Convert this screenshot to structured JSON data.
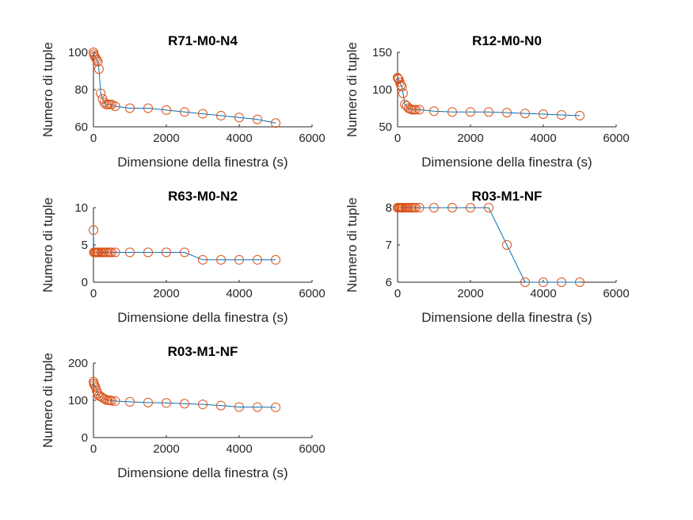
{
  "figure": {
    "colors": {
      "line": "#0072BD",
      "marker": "#D95319",
      "axis": "#262626"
    }
  },
  "chart_data": [
    {
      "type": "line",
      "title": "R71-M0-N4",
      "xlabel": "Dimensione della finestra (s)",
      "ylabel": "Numero di tuple",
      "xlim": [
        0,
        6000
      ],
      "ylim": [
        60,
        100
      ],
      "xticks": [
        0,
        2000,
        4000,
        6000
      ],
      "yticks": [
        60,
        80,
        100
      ],
      "grid": false,
      "series": [
        {
          "x": [
            1,
            10,
            30,
            60,
            90,
            120,
            150,
            200,
            250,
            300,
            350,
            400,
            450,
            500,
            600,
            1000,
            1500,
            2000,
            2500,
            3000,
            3500,
            4000,
            4500,
            5000
          ],
          "y": [
            100,
            99,
            98,
            97,
            96,
            95,
            91,
            78,
            75,
            73,
            72,
            72,
            72,
            72,
            71,
            70,
            70,
            69,
            68,
            67,
            66,
            65,
            64,
            62
          ]
        }
      ]
    },
    {
      "type": "line",
      "title": "R12-M0-N0",
      "xlabel": "Dimensione della finestra (s)",
      "ylabel": "Numero di tuple",
      "xlim": [
        0,
        6000
      ],
      "ylim": [
        50,
        150
      ],
      "xticks": [
        0,
        2000,
        4000,
        6000
      ],
      "yticks": [
        50,
        100,
        150
      ],
      "grid": false,
      "series": [
        {
          "x": [
            1,
            10,
            30,
            60,
            90,
            120,
            150,
            200,
            250,
            300,
            350,
            400,
            450,
            500,
            600,
            1000,
            1500,
            2000,
            2500,
            3000,
            3500,
            4000,
            4500,
            5000
          ],
          "y": [
            116,
            115,
            114,
            110,
            106,
            104,
            95,
            80,
            78,
            75,
            74,
            73,
            73,
            73,
            73,
            71,
            70,
            70,
            70,
            69,
            68,
            67,
            66,
            65
          ]
        }
      ]
    },
    {
      "type": "line",
      "title": "R63-M0-N2",
      "xlabel": "Dimensione della finestra (s)",
      "ylabel": "Numero di tuple",
      "xlim": [
        0,
        6000
      ],
      "ylim": [
        0,
        10
      ],
      "xticks": [
        0,
        2000,
        4000,
        6000
      ],
      "yticks": [
        0,
        5,
        10
      ],
      "grid": false,
      "series": [
        {
          "x": [
            1,
            10,
            30,
            60,
            90,
            120,
            150,
            200,
            250,
            300,
            350,
            400,
            450,
            500,
            600,
            1000,
            1500,
            2000,
            2500,
            3000,
            3500,
            4000,
            4500,
            5000
          ],
          "y": [
            7,
            4,
            4,
            4,
            4,
            4,
            4,
            4,
            4,
            4,
            4,
            4,
            4,
            4,
            4,
            4,
            4,
            4,
            4,
            3,
            3,
            3,
            3,
            3
          ]
        }
      ]
    },
    {
      "type": "line",
      "title": "R03-M1-NF",
      "xlabel": "Dimensione della finestra (s)",
      "ylabel": "Numero di tuple",
      "xlim": [
        0,
        6000
      ],
      "ylim": [
        6,
        8
      ],
      "xticks": [
        0,
        2000,
        4000,
        6000
      ],
      "yticks": [
        6,
        7,
        8
      ],
      "grid": false,
      "series": [
        {
          "x": [
            1,
            10,
            30,
            60,
            90,
            120,
            150,
            200,
            250,
            300,
            350,
            400,
            450,
            500,
            600,
            1000,
            1500,
            2000,
            2500,
            3000,
            3500,
            4000,
            4500,
            5000
          ],
          "y": [
            8,
            8,
            8,
            8,
            8,
            8,
            8,
            8,
            8,
            8,
            8,
            8,
            8,
            8,
            8,
            8,
            8,
            8,
            8,
            7,
            6,
            6,
            6,
            6
          ]
        }
      ]
    },
    {
      "type": "line",
      "title": "R03-M1-NF",
      "xlabel": "Dimensione della finestra (s)",
      "ylabel": "Numero di tuple",
      "xlim": [
        0,
        6000
      ],
      "ylim": [
        0,
        200
      ],
      "xticks": [
        0,
        2000,
        4000,
        6000
      ],
      "yticks": [
        0,
        100,
        200
      ],
      "grid": false,
      "series": [
        {
          "x": [
            1,
            10,
            30,
            60,
            90,
            120,
            150,
            200,
            250,
            300,
            350,
            400,
            450,
            500,
            600,
            1000,
            1500,
            2000,
            2500,
            3000,
            3500,
            4000,
            4500,
            5000
          ],
          "y": [
            150,
            145,
            140,
            135,
            125,
            118,
            112,
            110,
            107,
            104,
            101,
            100,
            100,
            99,
            98,
            96,
            94,
            93,
            91,
            89,
            86,
            82,
            82,
            81
          ]
        }
      ]
    }
  ]
}
